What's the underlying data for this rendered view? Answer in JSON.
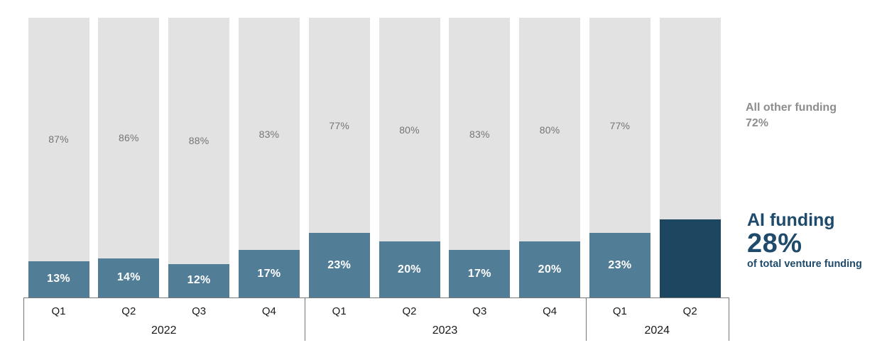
{
  "chart_data": {
    "type": "bar",
    "subtype": "100-percent-stacked-column",
    "title": "",
    "xlabel": "",
    "ylabel": "",
    "ylim": [
      0,
      100
    ],
    "grid": false,
    "legend": "right-side-annotations",
    "categories": [
      "Q1",
      "Q2",
      "Q3",
      "Q4",
      "Q1",
      "Q2",
      "Q3",
      "Q4",
      "Q1",
      "Q2"
    ],
    "year_groups": [
      {
        "label": "2022",
        "span": 4
      },
      {
        "label": "2023",
        "span": 4
      },
      {
        "label": "2024",
        "span": 2
      }
    ],
    "series": [
      {
        "name": "AI funding",
        "values": [
          13,
          14,
          12,
          17,
          23,
          20,
          17,
          20,
          23,
          28
        ]
      },
      {
        "name": "All other funding",
        "values": [
          87,
          86,
          88,
          83,
          77,
          80,
          83,
          80,
          77,
          72
        ]
      }
    ],
    "ai_value_labels": [
      "13%",
      "14%",
      "12%",
      "17%",
      "23%",
      "20%",
      "17%",
      "20%",
      "23%",
      ""
    ],
    "other_value_labels": [
      "87%",
      "86%",
      "88%",
      "83%",
      "77%",
      "80%",
      "83%",
      "80%",
      "77%",
      ""
    ],
    "highlight_index": 9
  },
  "annotations": {
    "other": {
      "title": "All other funding",
      "value": "72%"
    },
    "ai": {
      "title": "AI funding",
      "value": "28%",
      "subtitle": "of total venture funding"
    }
  },
  "colors": {
    "ai_bar": "#527d97",
    "ai_bar_highlight": "#1d4660",
    "other_bar": "#e2e2e2",
    "ai_value_text": "#ffffff",
    "other_value_text": "#757575",
    "axis_text": "#1a1a1a",
    "axis_line": "#777777",
    "annotation_other_text": "#8d8d8d",
    "annotation_ai_text": "#1e4a6b"
  }
}
